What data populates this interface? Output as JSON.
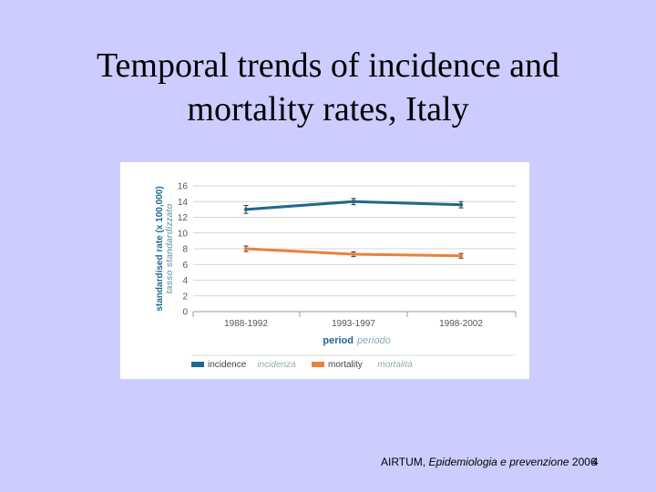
{
  "slide": {
    "title_line1": "Temporal trends of incidence and",
    "title_line2": "mortality rates,  Italy",
    "citation_author": "AIRTUM,",
    "citation_work": "Epidemiologia e prevenzione",
    "citation_year": "2006",
    "slide_number": "4"
  },
  "chart_data": {
    "type": "line",
    "categories": [
      "1988-1992",
      "1993-1997",
      "1998-2002"
    ],
    "series": [
      {
        "name": "incidence",
        "name_it": "incidenza",
        "color": "#1e6a8c",
        "values": [
          13.0,
          14.0,
          13.6
        ],
        "error": [
          0.5,
          0.4,
          0.4
        ]
      },
      {
        "name": "mortality",
        "name_it": "mortalità",
        "color": "#e8823a",
        "values": [
          8.0,
          7.3,
          7.1
        ],
        "error": [
          0.35,
          0.3,
          0.3
        ]
      }
    ],
    "ylabel": "standardised rate (x 100,000)",
    "ylabel_it": "tasso standardizzato",
    "xlabel": "period",
    "xlabel_it": "periodo",
    "ylim": [
      0,
      16
    ],
    "yticks": [
      0,
      2,
      4,
      6,
      8,
      10,
      12,
      14,
      16
    ],
    "grid": true,
    "legend_position": "bottom",
    "axis_color": "#1e6a8c"
  }
}
